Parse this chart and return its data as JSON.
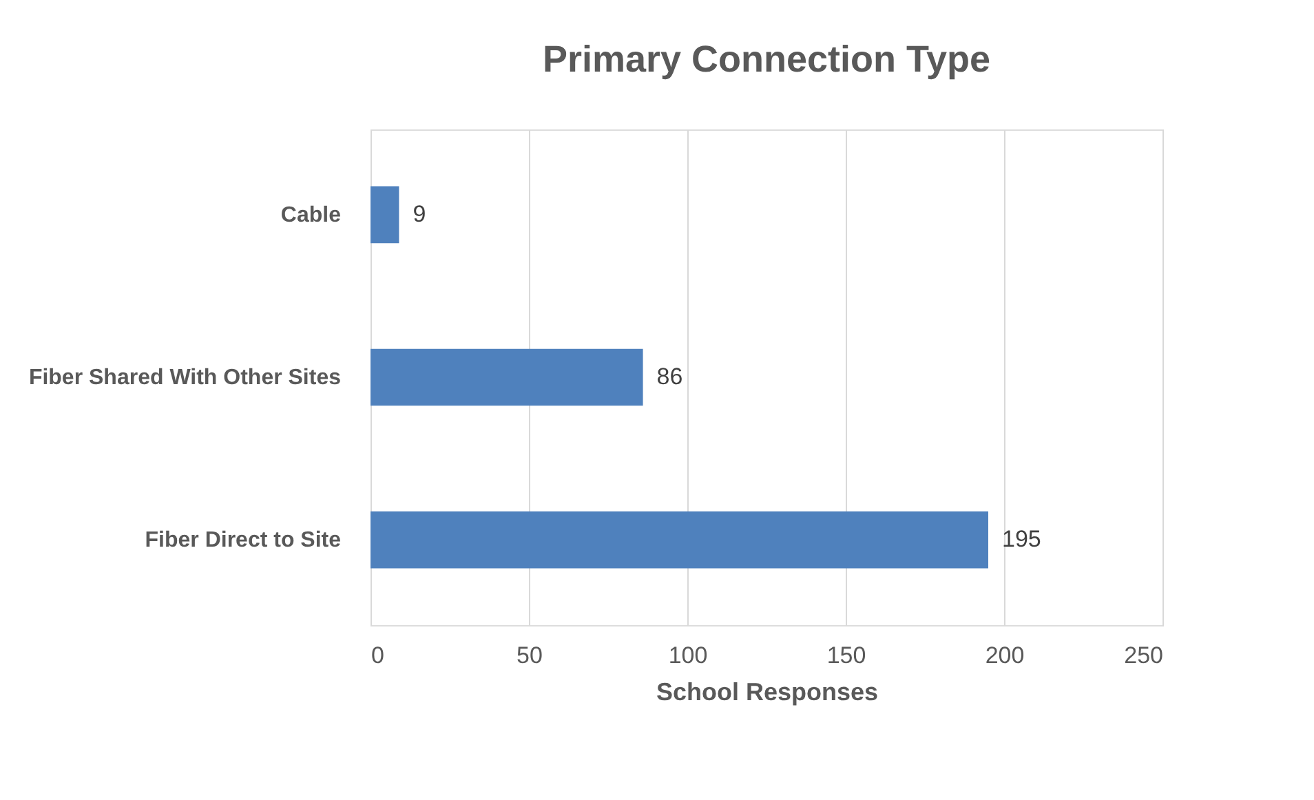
{
  "chart_data": {
    "type": "bar",
    "orientation": "horizontal",
    "title": "Primary Connection Type",
    "xlabel": "School Responses",
    "categories": [
      "Cable",
      "Fiber Shared With Other Sites",
      "Fiber Direct to Site"
    ],
    "values": [
      9,
      86,
      195
    ],
    "color": "#4f81bd",
    "xlim": [
      0,
      250
    ],
    "xticks": [
      0,
      50,
      100,
      150,
      200,
      250
    ],
    "grid": "x",
    "data_labels": true
  }
}
